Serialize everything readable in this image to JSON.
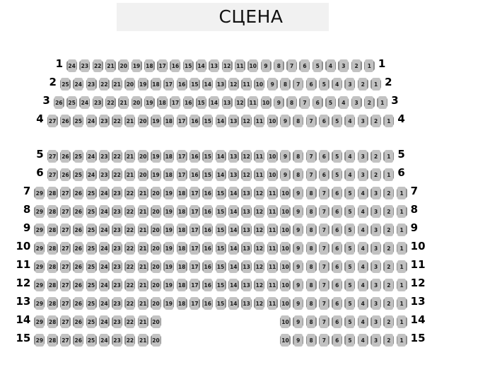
{
  "stage": {
    "label": "СЦЕНА"
  },
  "colors": {
    "seat": "#8c8c8c",
    "seat_back": "#c2c2c2",
    "seat_number": "#1a1a1a",
    "stage_bg": "#f1f1f1",
    "row_label": "#000000"
  },
  "seating": {
    "rows": [
      {
        "label": "1",
        "gap_slots": 0,
        "segments": [
          {
            "seats": [
              24,
              23,
              22,
              21,
              20,
              19,
              18,
              17,
              16,
              15,
              14,
              13,
              12,
              11,
              10,
              9,
              8,
              7,
              6,
              5,
              4,
              3,
              2,
              1
            ]
          }
        ]
      },
      {
        "label": "2",
        "gap_slots": 0,
        "segments": [
          {
            "seats": [
              25,
              24,
              23,
              22,
              21,
              20,
              19,
              18,
              17,
              16,
              15,
              14,
              13,
              12,
              11,
              10,
              9,
              8,
              7,
              6,
              5,
              4,
              3,
              2,
              1
            ]
          }
        ]
      },
      {
        "label": "3",
        "gap_slots": 0,
        "segments": [
          {
            "seats": [
              26,
              25,
              24,
              23,
              22,
              21,
              20,
              19,
              18,
              17,
              16,
              15,
              14,
              13,
              12,
              11,
              10,
              9,
              8,
              7,
              6,
              5,
              4,
              3,
              2,
              1
            ]
          }
        ]
      },
      {
        "label": "4",
        "gap_slots": 0,
        "segments": [
          {
            "seats": [
              27,
              26,
              25,
              24,
              23,
              22,
              21,
              20,
              19,
              18,
              17,
              16,
              15,
              14,
              13,
              12,
              11,
              10,
              9,
              8,
              7,
              6,
              5,
              4,
              3,
              2,
              1
            ]
          }
        ]
      },
      {
        "label": "5",
        "gap_slots": 0,
        "segments": [
          {
            "seats": [
              27,
              26,
              25,
              24,
              23,
              22,
              21,
              20,
              19,
              18,
              17,
              16,
              15,
              14,
              13,
              12,
              11,
              10,
              9,
              8,
              7,
              6,
              5,
              4,
              3,
              2,
              1
            ]
          }
        ]
      },
      {
        "label": "6",
        "gap_slots": 0,
        "segments": [
          {
            "seats": [
              27,
              26,
              25,
              24,
              23,
              22,
              21,
              20,
              19,
              18,
              17,
              16,
              15,
              14,
              13,
              12,
              11,
              10,
              9,
              8,
              7,
              6,
              5,
              4,
              3,
              2,
              1
            ]
          }
        ]
      },
      {
        "label": "7",
        "gap_slots": 0,
        "segments": [
          {
            "seats": [
              29,
              28,
              27,
              26,
              25,
              24,
              23,
              22,
              21,
              20,
              19,
              18,
              17,
              16,
              15,
              14,
              13,
              12,
              11,
              10,
              9,
              8,
              7,
              6,
              5,
              4,
              3,
              2,
              1
            ]
          }
        ]
      },
      {
        "label": "8",
        "gap_slots": 0,
        "segments": [
          {
            "seats": [
              29,
              28,
              27,
              26,
              25,
              24,
              23,
              22,
              21,
              20,
              19,
              18,
              17,
              16,
              15,
              14,
              13,
              12,
              11,
              10,
              9,
              8,
              7,
              6,
              5,
              4,
              3,
              2,
              1
            ]
          }
        ]
      },
      {
        "label": "9",
        "gap_slots": 0,
        "segments": [
          {
            "seats": [
              29,
              28,
              27,
              26,
              25,
              24,
              23,
              22,
              21,
              20,
              19,
              18,
              17,
              16,
              15,
              14,
              13,
              12,
              11,
              10,
              9,
              8,
              7,
              6,
              5,
              4,
              3,
              2,
              1
            ]
          }
        ]
      },
      {
        "label": "10",
        "gap_slots": 0,
        "segments": [
          {
            "seats": [
              29,
              28,
              27,
              26,
              25,
              24,
              23,
              22,
              21,
              20,
              19,
              18,
              17,
              16,
              15,
              14,
              13,
              12,
              11,
              10,
              9,
              8,
              7,
              6,
              5,
              4,
              3,
              2,
              1
            ]
          }
        ]
      },
      {
        "label": "11",
        "gap_slots": 0,
        "segments": [
          {
            "seats": [
              29,
              28,
              27,
              26,
              25,
              24,
              23,
              22,
              21,
              20,
              19,
              18,
              17,
              16,
              15,
              14,
              13,
              12,
              11,
              10,
              9,
              8,
              7,
              6,
              5,
              4,
              3,
              2,
              1
            ]
          }
        ]
      },
      {
        "label": "12",
        "gap_slots": 0,
        "segments": [
          {
            "seats": [
              29,
              28,
              27,
              26,
              25,
              24,
              23,
              22,
              21,
              20,
              19,
              18,
              17,
              16,
              15,
              14,
              13,
              12,
              11,
              10,
              9,
              8,
              7,
              6,
              5,
              4,
              3,
              2,
              1
            ]
          }
        ]
      },
      {
        "label": "13",
        "gap_slots": 0,
        "segments": [
          {
            "seats": [
              29,
              28,
              27,
              26,
              25,
              24,
              23,
              22,
              21,
              20,
              19,
              18,
              17,
              16,
              15,
              14,
              13,
              12,
              11,
              10,
              9,
              8,
              7,
              6,
              5,
              4,
              3,
              2,
              1
            ]
          }
        ]
      },
      {
        "label": "14",
        "gap_slots": 9,
        "segments": [
          {
            "seats": [
              29,
              28,
              27,
              26,
              25,
              24,
              23,
              22,
              21,
              20
            ]
          },
          {
            "seats": [
              10,
              9,
              8,
              7,
              6,
              5,
              4,
              3,
              2,
              1
            ]
          }
        ]
      },
      {
        "label": "15",
        "gap_slots": 9,
        "segments": [
          {
            "seats": [
              29,
              28,
              27,
              26,
              25,
              24,
              23,
              22,
              21,
              20
            ]
          },
          {
            "seats": [
              10,
              9,
              8,
              7,
              6,
              5,
              4,
              3,
              2,
              1
            ]
          }
        ]
      }
    ]
  }
}
